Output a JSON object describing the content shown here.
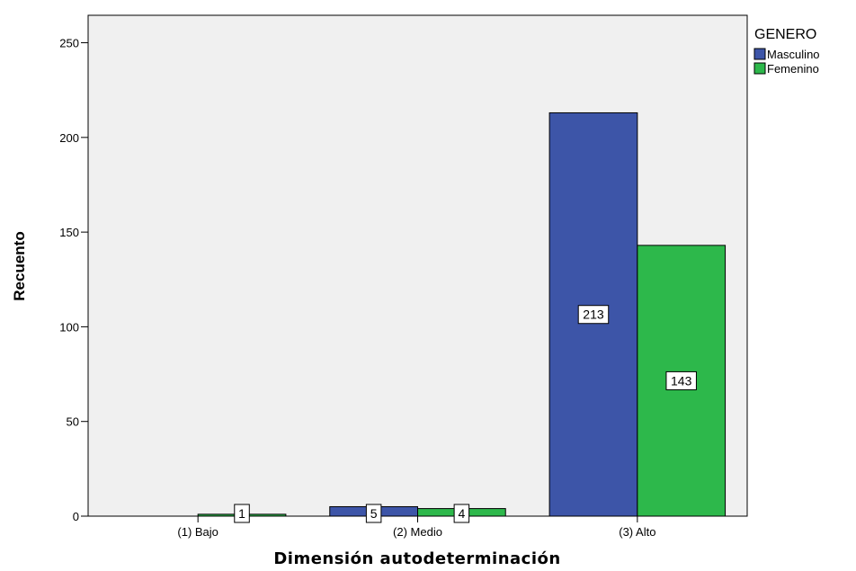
{
  "chart_data": {
    "type": "bar",
    "categories": [
      "(1) Bajo",
      "(2) Medio",
      "(3) Alto"
    ],
    "series": [
      {
        "name": "Masculino",
        "values": [
          0,
          5,
          213
        ],
        "labels": [
          "",
          "5",
          "213"
        ],
        "color": "#3d55a8"
      },
      {
        "name": "Femenino",
        "values": [
          1,
          4,
          143
        ],
        "labels": [
          "1",
          "4",
          "143"
        ],
        "color": "#2db84b"
      }
    ],
    "xlabel": "Dimensión autodeterminación",
    "ylabel": "Recuento",
    "ylim": [
      0,
      250
    ],
    "yticks": [
      0,
      50,
      100,
      150,
      200,
      250
    ],
    "legend": {
      "title": "GENERO",
      "position": "top-right"
    },
    "plot_background": "#f0f0f0",
    "grid": false
  }
}
